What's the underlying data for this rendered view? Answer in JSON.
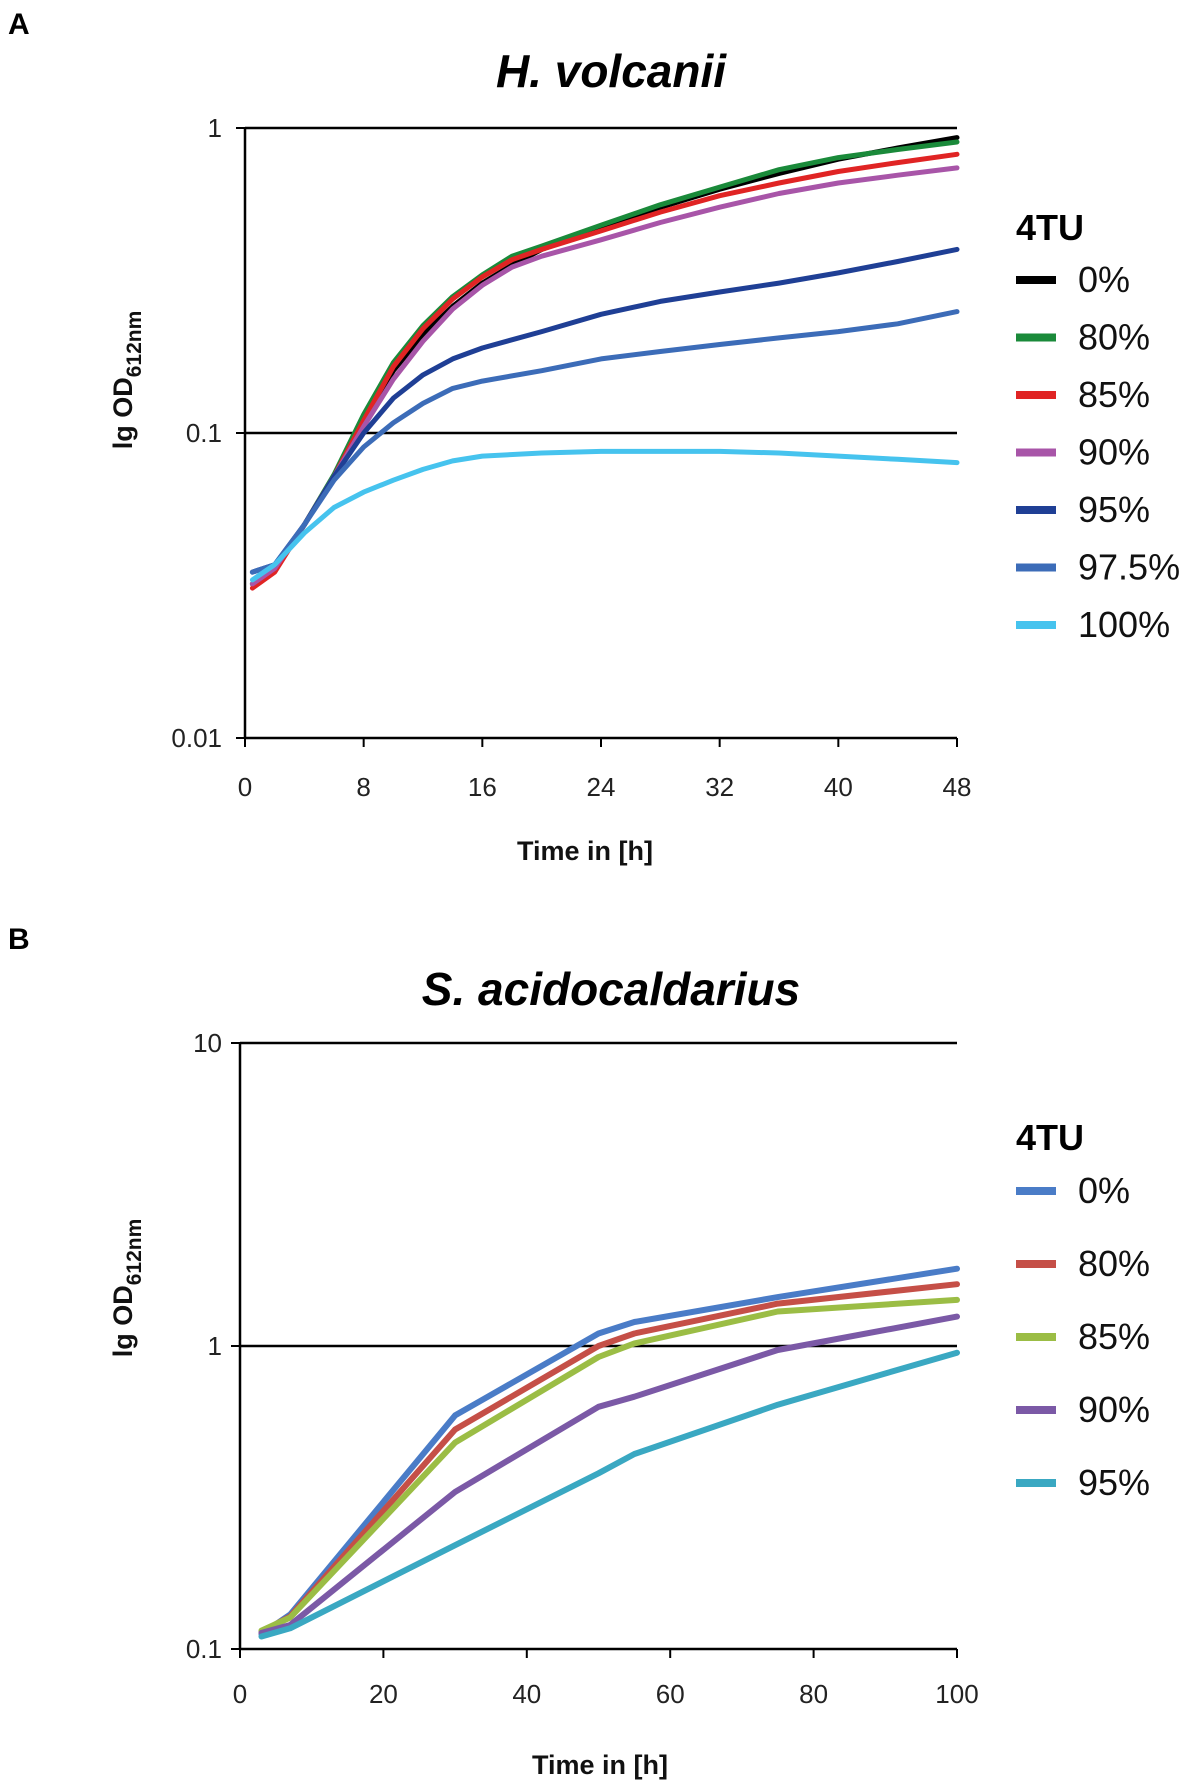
{
  "chart_data": [
    {
      "panel": "A",
      "type": "line",
      "title": "H. volcanii",
      "xlabel": "Time in [h]",
      "ylabel_main": "lg OD",
      "ylabel_sub": "612nm",
      "y_scale": "log",
      "xlim": [
        0,
        48
      ],
      "ylim": [
        0.01,
        1
      ],
      "x_ticks": [
        0,
        8,
        16,
        24,
        32,
        40,
        48
      ],
      "y_ticks": [
        "0.01",
        "0.1",
        "1"
      ],
      "y_tick_values": [
        0.01,
        0.1,
        1
      ],
      "gridlines_y": [
        0.1,
        1
      ],
      "legend_title": "4TU",
      "legend_position": "right",
      "series": [
        {
          "name": "0%",
          "color": "#000000",
          "x": [
            0.5,
            2,
            4,
            6,
            8,
            10,
            12,
            14,
            16,
            18,
            20,
            24,
            28,
            32,
            36,
            40,
            44,
            48
          ],
          "y": [
            0.032,
            0.036,
            0.05,
            0.072,
            0.11,
            0.16,
            0.21,
            0.26,
            0.31,
            0.355,
            0.4,
            0.47,
            0.55,
            0.63,
            0.71,
            0.79,
            0.86,
            0.93
          ]
        },
        {
          "name": "80%",
          "color": "#1a8a3a",
          "x": [
            0.5,
            2,
            4,
            6,
            8,
            10,
            12,
            14,
            16,
            18,
            20,
            24,
            28,
            32,
            36,
            40,
            44,
            48
          ],
          "y": [
            0.032,
            0.036,
            0.05,
            0.073,
            0.115,
            0.17,
            0.225,
            0.28,
            0.33,
            0.38,
            0.41,
            0.48,
            0.56,
            0.64,
            0.73,
            0.8,
            0.85,
            0.9
          ]
        },
        {
          "name": "85%",
          "color": "#e02424",
          "x": [
            0.5,
            2,
            4,
            6,
            8,
            10,
            12,
            14,
            16,
            18,
            20,
            24,
            28,
            32,
            36,
            40,
            44,
            48
          ],
          "y": [
            0.031,
            0.035,
            0.05,
            0.072,
            0.11,
            0.165,
            0.22,
            0.275,
            0.325,
            0.37,
            0.4,
            0.46,
            0.53,
            0.6,
            0.66,
            0.72,
            0.77,
            0.82
          ]
        },
        {
          "name": "90%",
          "color": "#a855a8",
          "x": [
            0.5,
            2,
            4,
            6,
            8,
            10,
            12,
            14,
            16,
            18,
            20,
            24,
            28,
            32,
            36,
            40,
            44,
            48
          ],
          "y": [
            0.032,
            0.036,
            0.05,
            0.072,
            0.105,
            0.15,
            0.2,
            0.255,
            0.305,
            0.35,
            0.38,
            0.43,
            0.49,
            0.55,
            0.61,
            0.66,
            0.7,
            0.74
          ]
        },
        {
          "name": "95%",
          "color": "#1f3f95",
          "x": [
            0.5,
            2,
            4,
            6,
            8,
            10,
            12,
            14,
            16,
            20,
            24,
            28,
            32,
            36,
            40,
            44,
            48
          ],
          "y": [
            0.035,
            0.037,
            0.05,
            0.072,
            0.1,
            0.13,
            0.155,
            0.175,
            0.19,
            0.215,
            0.245,
            0.27,
            0.29,
            0.31,
            0.335,
            0.365,
            0.4
          ]
        },
        {
          "name": "97.5%",
          "color": "#3c6cb8",
          "x": [
            0.5,
            2,
            4,
            6,
            8,
            10,
            12,
            14,
            16,
            20,
            24,
            28,
            32,
            36,
            40,
            44,
            48
          ],
          "y": [
            0.035,
            0.037,
            0.05,
            0.07,
            0.09,
            0.108,
            0.125,
            0.14,
            0.148,
            0.16,
            0.175,
            0.185,
            0.195,
            0.205,
            0.215,
            0.228,
            0.25
          ]
        },
        {
          "name": "100%",
          "color": "#46c3ee",
          "x": [
            0.5,
            2,
            4,
            6,
            8,
            10,
            12,
            14,
            16,
            20,
            24,
            28,
            32,
            36,
            40,
            44,
            48
          ],
          "y": [
            0.033,
            0.037,
            0.047,
            0.057,
            0.064,
            0.07,
            0.076,
            0.081,
            0.084,
            0.086,
            0.087,
            0.087,
            0.087,
            0.086,
            0.084,
            0.082,
            0.08
          ]
        }
      ]
    },
    {
      "panel": "B",
      "type": "line",
      "title": "S. acidocaldarius",
      "xlabel": "Time in [h]",
      "ylabel_main": "lg OD",
      "ylabel_sub": "612nm",
      "y_scale": "log",
      "xlim": [
        0,
        100
      ],
      "ylim": [
        0.1,
        10
      ],
      "x_ticks": [
        0,
        20,
        40,
        60,
        80,
        100
      ],
      "y_ticks": [
        "0.1",
        "1",
        "10"
      ],
      "y_tick_values": [
        0.1,
        1,
        10
      ],
      "gridlines_y": [
        1,
        10
      ],
      "legend_title": "4TU",
      "legend_position": "right",
      "series": [
        {
          "name": "0%",
          "color": "#4a7cc7",
          "x": [
            3,
            7,
            30,
            50,
            55,
            75,
            100
          ],
          "y": [
            0.112,
            0.13,
            0.59,
            1.1,
            1.2,
            1.45,
            1.8
          ]
        },
        {
          "name": "80%",
          "color": "#c54f47",
          "x": [
            3,
            7,
            30,
            50,
            55,
            75,
            100
          ],
          "y": [
            0.114,
            0.128,
            0.53,
            1.0,
            1.1,
            1.38,
            1.6
          ]
        },
        {
          "name": "85%",
          "color": "#9bbd45",
          "x": [
            3,
            7,
            30,
            50,
            55,
            75,
            100
          ],
          "y": [
            0.115,
            0.127,
            0.48,
            0.92,
            1.02,
            1.3,
            1.42
          ]
        },
        {
          "name": "90%",
          "color": "#7b59a6",
          "x": [
            3,
            7,
            30,
            50,
            55,
            75,
            100
          ],
          "y": [
            0.113,
            0.12,
            0.33,
            0.63,
            0.68,
            0.97,
            1.25
          ]
        },
        {
          "name": "95%",
          "color": "#3aa8c2",
          "x": [
            3,
            7,
            30,
            50,
            55,
            75,
            100
          ],
          "y": [
            0.11,
            0.117,
            0.22,
            0.38,
            0.44,
            0.64,
            0.95
          ]
        }
      ]
    }
  ]
}
